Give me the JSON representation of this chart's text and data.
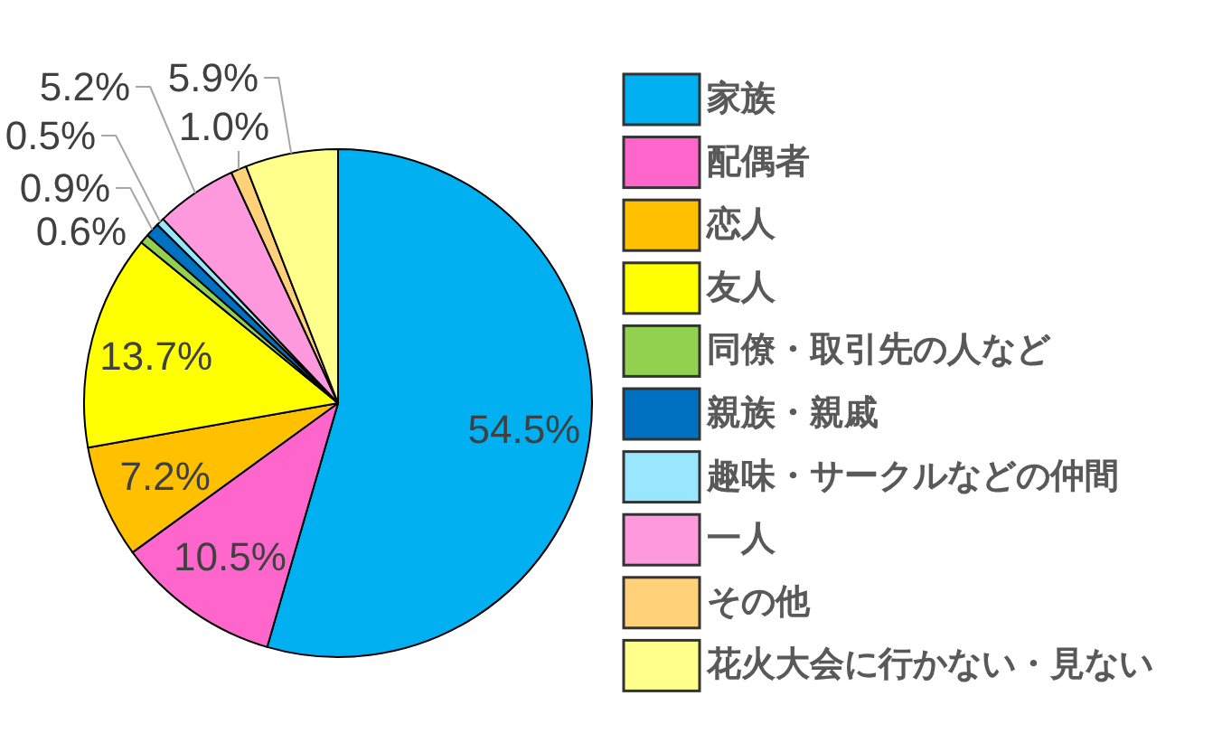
{
  "chart_data": {
    "type": "pie",
    "categories": [
      "家族",
      "配偶者",
      "恋人",
      "友人",
      "同僚・取引先の人など",
      "親族・親戚",
      "趣味・サークルなどの仲間",
      "一人",
      "その他",
      "花火大会に行かない・見ない"
    ],
    "values": [
      54.5,
      10.5,
      7.2,
      13.7,
      0.6,
      0.9,
      0.5,
      5.2,
      1.0,
      5.9
    ],
    "value_labels": [
      "54.5%",
      "10.5%",
      "7.2%",
      "13.7%",
      "0.6%",
      "0.9%",
      "0.5%",
      "5.2%",
      "1.0%",
      "5.9%"
    ],
    "colors": [
      "#00b0f0",
      "#ff66cc",
      "#ffc000",
      "#ffff00",
      "#92d050",
      "#0070c0",
      "#99e6ff",
      "#ff99dd",
      "#ffd27a",
      "#ffff8c"
    ],
    "legend": "right"
  }
}
